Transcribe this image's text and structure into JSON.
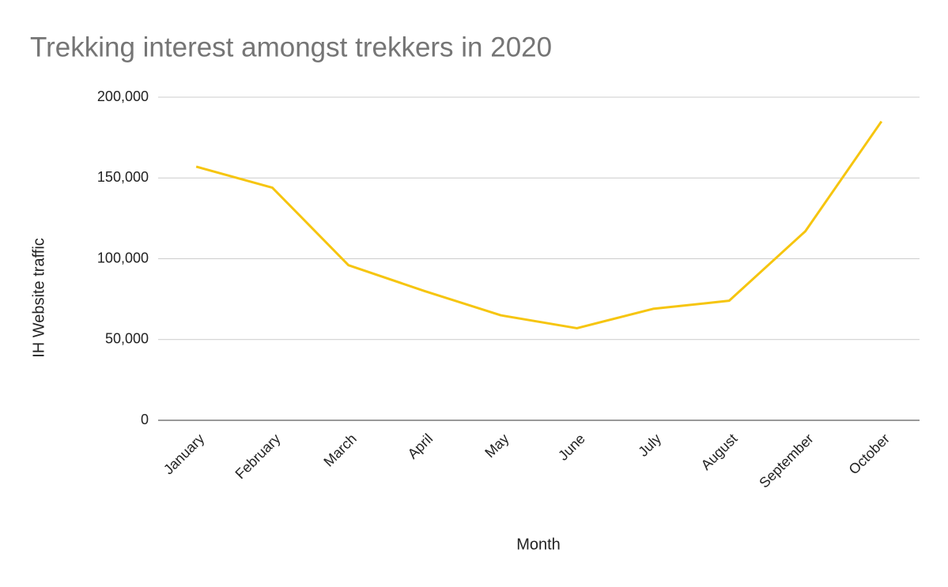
{
  "chart_data": {
    "type": "line",
    "title": "Trekking interest amongst trekkers in 2020",
    "x_label": "Month",
    "y_label": "IH Website traffic",
    "categories": [
      "January",
      "February",
      "March",
      "April",
      "May",
      "June",
      "July",
      "August",
      "September",
      "October"
    ],
    "series": [
      {
        "name": "IH Website traffic",
        "color": "#f6c50f",
        "values": [
          157000,
          144000,
          96000,
          80000,
          65000,
          57000,
          69000,
          74000,
          117000,
          185000
        ]
      }
    ],
    "ylim": [
      0,
      200000
    ],
    "yticks": [
      0,
      {
        "value": 50000,
        "label": "50,000"
      },
      {
        "value": 100000,
        "label": "100,000"
      },
      {
        "value": 150000,
        "label": "150,000"
      },
      {
        "value": 200000,
        "label": "200,000"
      }
    ],
    "grid": true
  }
}
